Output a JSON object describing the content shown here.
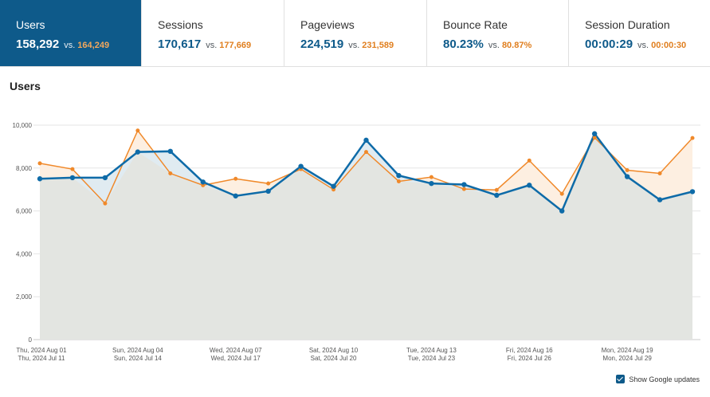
{
  "tabs": [
    {
      "label": "Users",
      "value": "158,292",
      "vs": "vs.",
      "compare": "164,249",
      "active": true
    },
    {
      "label": "Sessions",
      "value": "170,617",
      "vs": "vs.",
      "compare": "177,669",
      "active": false
    },
    {
      "label": "Pageviews",
      "value": "224,519",
      "vs": "vs.",
      "compare": "231,589",
      "active": false
    },
    {
      "label": "Bounce Rate",
      "value": "80.23%",
      "vs": "vs.",
      "compare": "80.87%",
      "active": false
    },
    {
      "label": "Session Duration",
      "value": "00:00:29",
      "vs": "vs.",
      "compare": "00:00:30",
      "active": false
    }
  ],
  "section_title": "Users",
  "show_updates_label": "Show Google updates",
  "show_updates_checked": true,
  "colors": {
    "accent": "#0e5a8a",
    "current": "#0e6ba8",
    "compare": "#f0892a",
    "current_fill": "#e0ebf1",
    "compare_fill": "#fdefe1",
    "base_fill": "#e3e5e1"
  },
  "chart_data": {
    "type": "line",
    "ylim": [
      0,
      10000
    ],
    "y_ticks": [
      "0",
      "2,000",
      "4,000",
      "6,000",
      "8,000",
      "10,000"
    ],
    "y_tick_values": [
      0,
      2000,
      4000,
      6000,
      8000,
      10000
    ],
    "x_tick_labels": [
      {
        "index": 0,
        "primary": "Thu, 2024 Aug 01",
        "secondary": "Thu, 2024 Jul 11"
      },
      {
        "index": 3,
        "primary": "Sun, 2024 Aug 04",
        "secondary": "Sun, 2024 Jul 14"
      },
      {
        "index": 6,
        "primary": "Wed, 2024 Aug 07",
        "secondary": "Wed, 2024 Jul 17"
      },
      {
        "index": 9,
        "primary": "Sat, 2024 Aug 10",
        "secondary": "Sat, 2024 Jul 20"
      },
      {
        "index": 12,
        "primary": "Tue, 2024 Aug 13",
        "secondary": "Tue, 2024 Jul 23"
      },
      {
        "index": 15,
        "primary": "Fri, 2024 Aug 16",
        "secondary": "Fri, 2024 Jul 26"
      },
      {
        "index": 18,
        "primary": "Mon, 2024 Aug 19",
        "secondary": "Mon, 2024 Jul 29"
      }
    ],
    "point_count": 21,
    "grid": true,
    "series": [
      {
        "values": [
          7500,
          7550,
          7550,
          8750,
          8780,
          7350,
          6700,
          6920,
          8080,
          7150,
          9300,
          7650,
          7280,
          7230,
          6730,
          7200,
          6000,
          9600,
          7600,
          6520,
          6900
        ]
      },
      {
        "values": [
          8220,
          7950,
          6350,
          9750,
          7750,
          7200,
          7500,
          7280,
          7950,
          7000,
          8750,
          7380,
          7580,
          7020,
          6980,
          8350,
          6800,
          9420,
          7900,
          7750,
          9400
        ]
      }
    ]
  }
}
